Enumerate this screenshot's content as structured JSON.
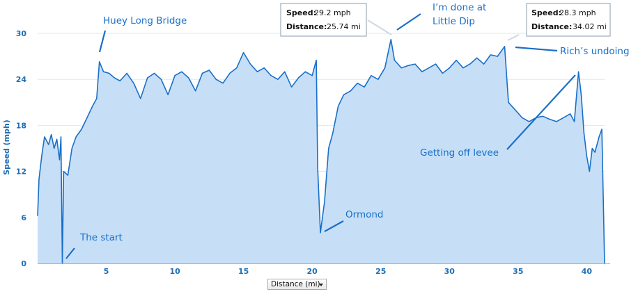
{
  "chart_data": {
    "type": "area",
    "title": "",
    "xlabel": "",
    "ylabel": "Speed (mph)",
    "xlim": [
      0,
      41.3
    ],
    "ylim": [
      0,
      30
    ],
    "x_ticks": [
      5,
      10,
      15,
      20,
      25,
      30,
      35,
      40
    ],
    "y_ticks": [
      0,
      6,
      12,
      18,
      24,
      30
    ],
    "grid": "horizontal",
    "colors": {
      "line": "#1a6fc7",
      "fill": "#c6dff7",
      "grid": "#dde8f2",
      "annotation": "#1a6fc7"
    },
    "series": [
      {
        "points": [
          [
            0,
            6.2
          ],
          [
            0.1,
            11
          ],
          [
            0.3,
            14
          ],
          [
            0.5,
            16.5
          ],
          [
            0.8,
            15.5
          ],
          [
            1.0,
            16.8
          ],
          [
            1.2,
            15
          ],
          [
            1.4,
            16.2
          ],
          [
            1.6,
            13.5
          ],
          [
            1.7,
            16.5
          ],
          [
            1.8,
            0
          ],
          [
            1.9,
            12
          ],
          [
            2.2,
            11.5
          ],
          [
            2.5,
            15
          ],
          [
            2.8,
            16.5
          ],
          [
            3.2,
            17.5
          ],
          [
            3.6,
            19
          ],
          [
            4.0,
            20.5
          ],
          [
            4.3,
            21.5
          ],
          [
            4.5,
            26.3
          ],
          [
            4.8,
            25
          ],
          [
            5.2,
            24.8
          ],
          [
            5.6,
            24.2
          ],
          [
            6.0,
            23.8
          ],
          [
            6.5,
            24.8
          ],
          [
            7.0,
            23.5
          ],
          [
            7.5,
            21.5
          ],
          [
            8.0,
            24.2
          ],
          [
            8.5,
            24.8
          ],
          [
            9.0,
            24
          ],
          [
            9.5,
            22
          ],
          [
            10.0,
            24.5
          ],
          [
            10.5,
            25
          ],
          [
            11.0,
            24.2
          ],
          [
            11.5,
            22.5
          ],
          [
            12.0,
            24.8
          ],
          [
            12.5,
            25.2
          ],
          [
            13.0,
            24
          ],
          [
            13.5,
            23.5
          ],
          [
            14.0,
            24.8
          ],
          [
            14.5,
            25.5
          ],
          [
            15.0,
            27.5
          ],
          [
            15.5,
            26
          ],
          [
            16.0,
            25
          ],
          [
            16.5,
            25.5
          ],
          [
            17.0,
            24.5
          ],
          [
            17.5,
            24
          ],
          [
            18.0,
            25
          ],
          [
            18.5,
            23
          ],
          [
            19.0,
            24.2
          ],
          [
            19.5,
            25
          ],
          [
            20.0,
            24.5
          ],
          [
            20.3,
            26.5
          ],
          [
            20.4,
            12.5
          ],
          [
            20.6,
            4
          ],
          [
            20.9,
            8
          ],
          [
            21.2,
            15
          ],
          [
            21.5,
            17
          ],
          [
            21.9,
            20.5
          ],
          [
            22.3,
            22
          ],
          [
            22.8,
            22.5
          ],
          [
            23.3,
            23.5
          ],
          [
            23.8,
            23
          ],
          [
            24.3,
            24.5
          ],
          [
            24.8,
            24
          ],
          [
            25.3,
            25.5
          ],
          [
            25.74,
            29.2
          ],
          [
            26.0,
            26.5
          ],
          [
            26.5,
            25.5
          ],
          [
            27.0,
            25.8
          ],
          [
            27.5,
            26
          ],
          [
            28.0,
            25
          ],
          [
            28.5,
            25.5
          ],
          [
            29.0,
            26
          ],
          [
            29.5,
            24.8
          ],
          [
            30.0,
            25.5
          ],
          [
            30.5,
            26.5
          ],
          [
            31.0,
            25.5
          ],
          [
            31.5,
            26
          ],
          [
            32.0,
            26.8
          ],
          [
            32.5,
            26
          ],
          [
            33.0,
            27.2
          ],
          [
            33.5,
            27
          ],
          [
            34.02,
            28.3
          ],
          [
            34.3,
            21
          ],
          [
            34.8,
            20
          ],
          [
            35.3,
            19
          ],
          [
            35.8,
            18.5
          ],
          [
            36.3,
            19
          ],
          [
            36.8,
            19.2
          ],
          [
            37.3,
            18.8
          ],
          [
            37.8,
            18.5
          ],
          [
            38.3,
            19
          ],
          [
            38.8,
            19.5
          ],
          [
            39.1,
            18.5
          ],
          [
            39.4,
            25
          ],
          [
            39.6,
            22
          ],
          [
            39.8,
            17
          ],
          [
            40.0,
            14
          ],
          [
            40.2,
            12
          ],
          [
            40.4,
            15
          ],
          [
            40.6,
            14.5
          ],
          [
            40.9,
            16.5
          ],
          [
            41.1,
            17.5
          ],
          [
            41.3,
            0
          ]
        ]
      }
    ],
    "annotations": [
      {
        "text": "Huey Long Bridge"
      },
      {
        "text": "The start"
      },
      {
        "text": "Ormond"
      },
      {
        "text": "I’m done at"
      },
      {
        "text": "Little Dip"
      },
      {
        "text": "Rich’s undoing"
      },
      {
        "text": "Getting off levee"
      }
    ],
    "tooltips": [
      {
        "speed_label": "Speed:",
        "speed_value": "29.2 mph",
        "distance_label": "Distance:",
        "distance_value": "25.74 mi"
      },
      {
        "speed_label": "Speed:",
        "speed_value": "28.3 mph",
        "distance_label": "Distance:",
        "distance_value": "34.02 mi"
      }
    ]
  },
  "axis_selector": {
    "label": "Distance (mi)"
  }
}
